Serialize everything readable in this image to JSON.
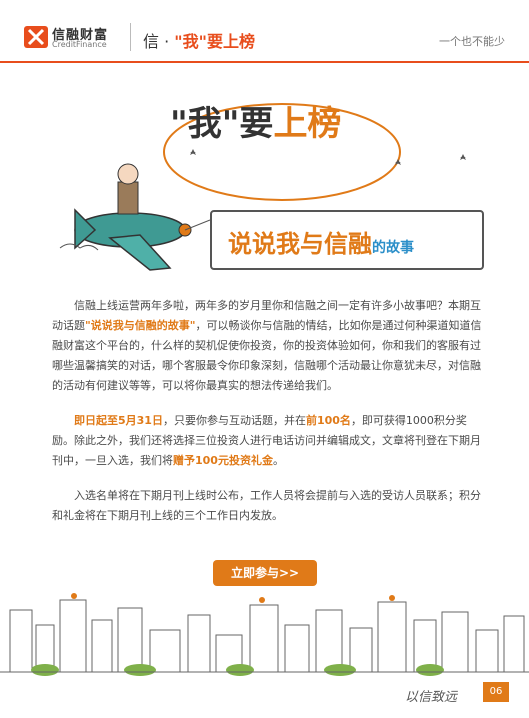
{
  "header": {
    "brand_name": "信融财富",
    "brand_sub": "CreditFinance",
    "title_prefix": "信 · ",
    "title_highlight": "\"我\"要上榜",
    "tagline": "一个也不能少"
  },
  "hero": {
    "title_part1": "\"我\"要",
    "title_part2": "上榜",
    "banner_main": "说说我与信融",
    "banner_sub": "的故事"
  },
  "body": {
    "p1": "信融上线运营两年多啦，两年多的岁月里你和信融之间一定有许多小故事吧？本期互动话题",
    "p1_topic": "\"说说我与信融的故事\"",
    "p1_rest": "，可以畅谈你与信融的情结，比如你是通过何种渠道知道信融财富这个平台的，什么样的契机促使你投资，你的投资体验如何，你和我们的客服有过哪些温馨搞笑的对话，哪个客服最令你印象深刻，信融哪个活动最让你意犹未尽，对信融的活动有何建议等等，可以将你最真实的想法传递给我们。",
    "p2_date": "即日起至5月31日",
    "p2_a": "，只要你参与互动话题，并在",
    "p2_top": "前100名",
    "p2_b": "，即可获得1000积分奖励。除此之外，我们还将选择三位投资人进行电话访问并编辑成文，文章将刊登在下期月刊中，一旦入选，我们将",
    "p2_gift": "赠予100元投资礼金",
    "p2_end": "。",
    "p3": "入选名单将在下期月刊上线时公布，工作人员将会提前与入选的受访人员联系；积分和礼金将在下期月刊上线的三个工作日内发放。"
  },
  "cta": {
    "label": "立即参与>>"
  },
  "footer": {
    "motto": "以信致远",
    "page_number": "06"
  },
  "colors": {
    "brand": "#e84d1c",
    "accent": "#e07a18",
    "blue": "#2c8fc9"
  }
}
